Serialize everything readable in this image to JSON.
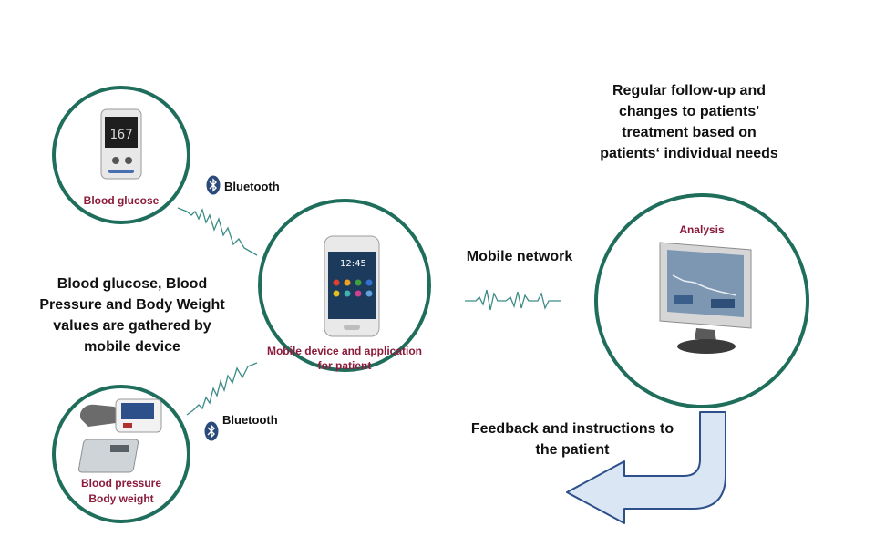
{
  "devices": {
    "glucose_label": "Blood glucose",
    "meter_reading": "167",
    "bp_label_line1": "Blood pressure",
    "bp_label_line2": "Body weight"
  },
  "phone": {
    "label_line1": "Mobile device and application",
    "label_line2": "for patient",
    "time": "12:45"
  },
  "analysis": {
    "label": "Analysis"
  },
  "connections": {
    "bluetooth_top": "Bluetooth",
    "bluetooth_bottom": "Bluetooth",
    "mobile_network": "Mobile network"
  },
  "notes": {
    "left_lines": [
      "Blood glucose, Blood",
      "Pressure and Body Weight",
      "values are gathered by",
      "mobile device"
    ],
    "top_right_lines": [
      "Regular follow-up and",
      "changes to patients'",
      "treatment based on",
      "patients‘ individual needs"
    ],
    "feedback_lines": [
      "Feedback and instructions to",
      "the patient"
    ]
  },
  "colors": {
    "circle_border": "#1f6e5c",
    "label_red": "#8b1a3b",
    "arrow_fill": "#dbe6f4",
    "arrow_stroke": "#2d4f8a",
    "wave": "#3c8c86"
  }
}
